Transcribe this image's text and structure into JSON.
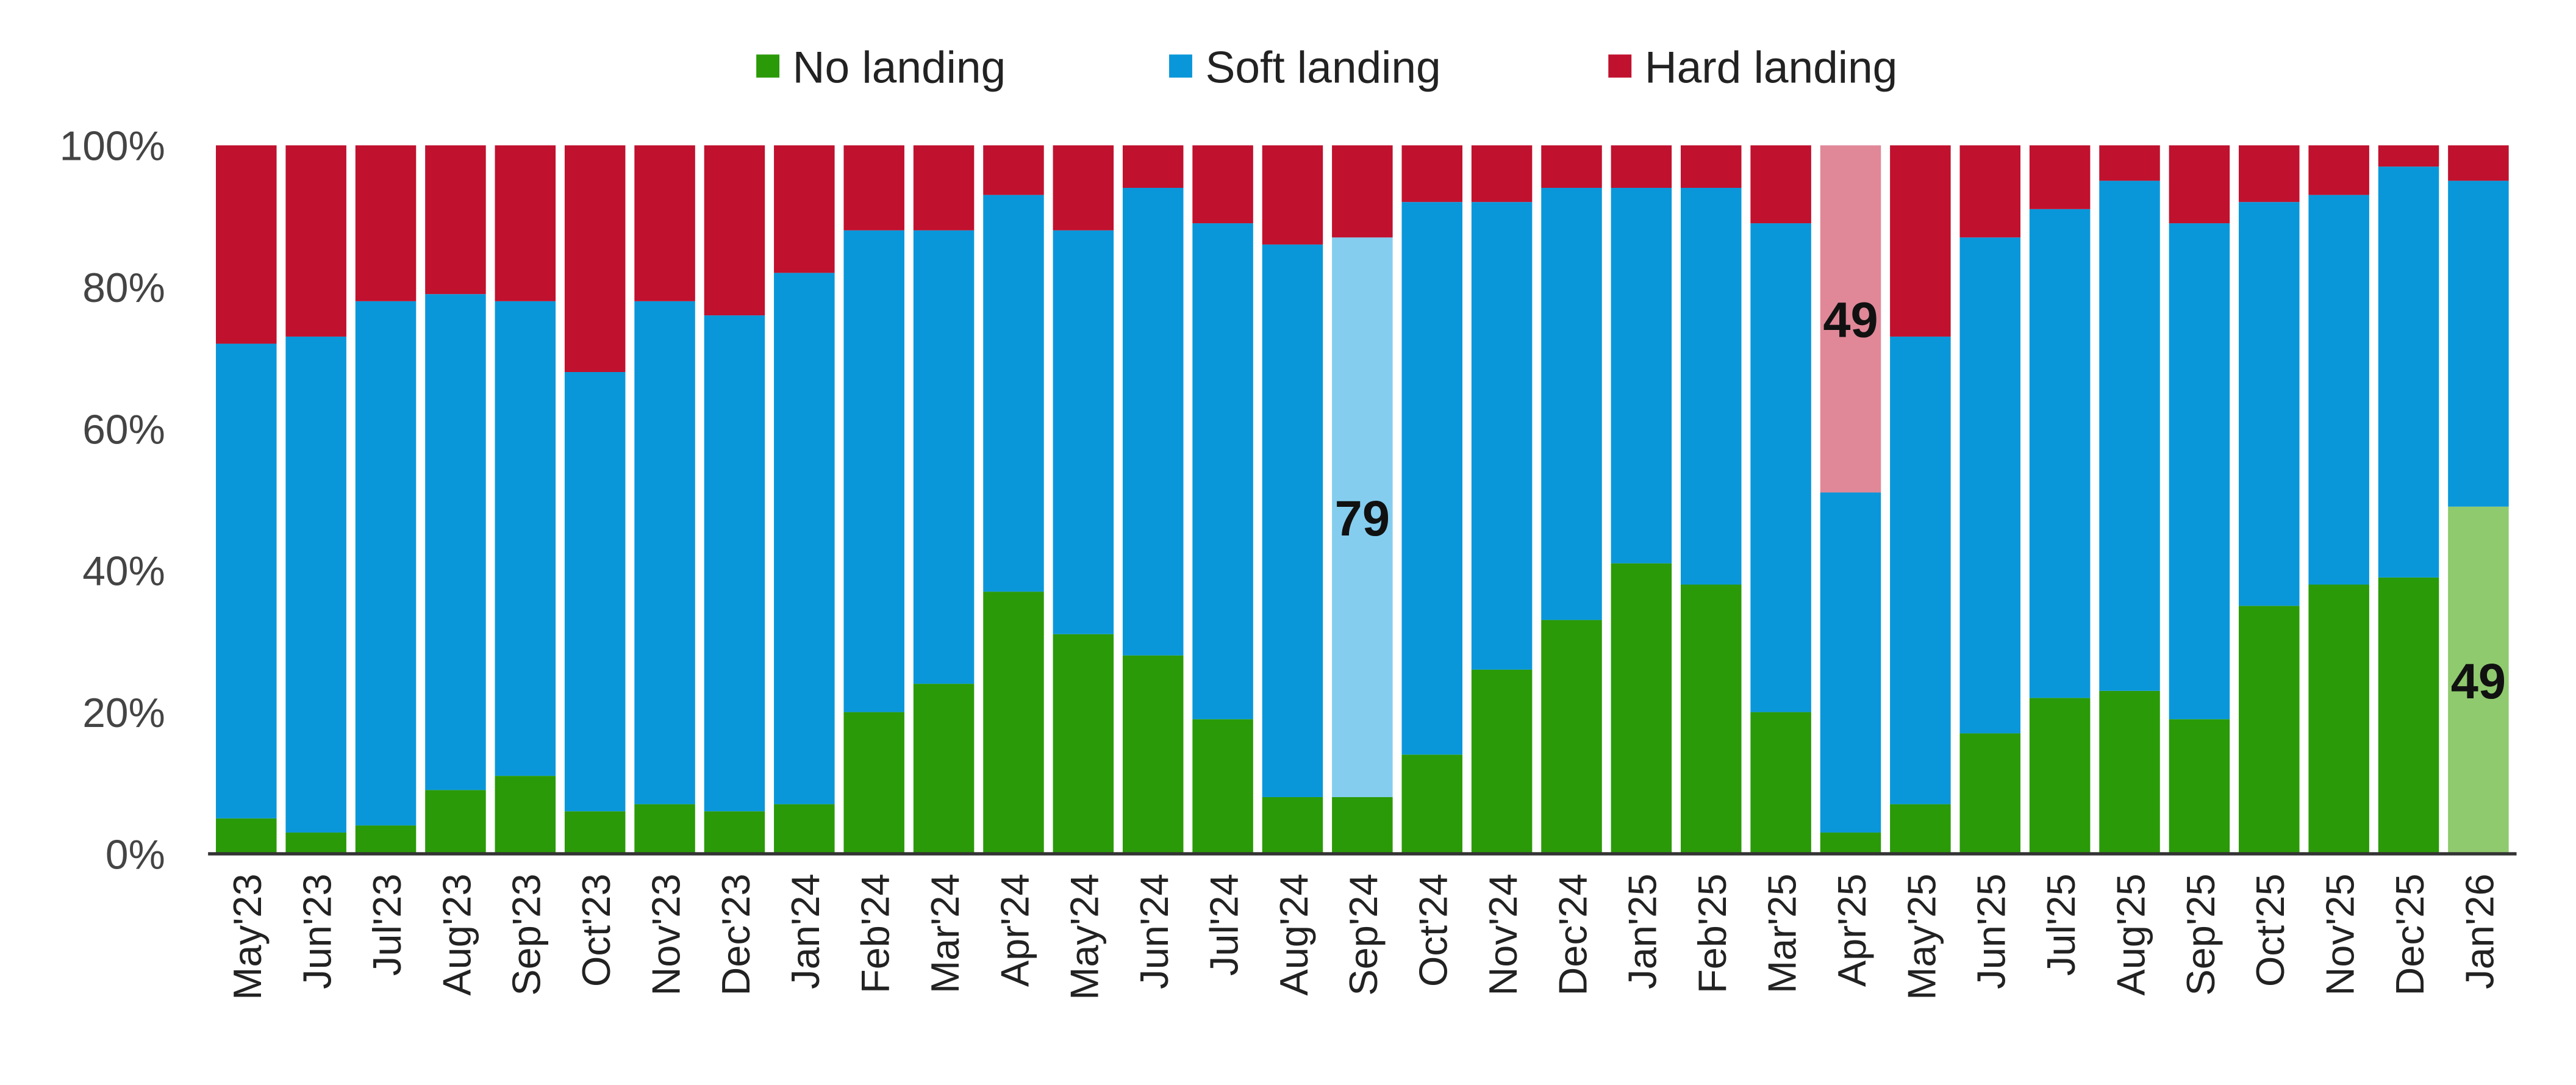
{
  "chart_data": {
    "type": "stacked-bar",
    "categories": [
      "May'23",
      "Jun'23",
      "Jul'23",
      "Aug'23",
      "Sep'23",
      "Oct'23",
      "Nov'23",
      "Dec'23",
      "Jan'24",
      "Feb'24",
      "Mar'24",
      "Apr'24",
      "May'24",
      "Jun'24",
      "Jul'24",
      "Aug'24",
      "Sep'24",
      "Oct'24",
      "Nov'24",
      "Dec'24",
      "Jan'25",
      "Feb'25",
      "Mar'25",
      "Apr'25",
      "May'25",
      "Jun'25",
      "Jul'25",
      "Aug'25",
      "Sep'25",
      "Oct'25",
      "Nov'25",
      "Dec'25",
      "Jan'26"
    ],
    "series": [
      {
        "name": "No landing",
        "color": "#2a9a08",
        "values": [
          5,
          3,
          4,
          9,
          11,
          6,
          7,
          6,
          7,
          20,
          24,
          37,
          31,
          28,
          19,
          8,
          8,
          14,
          26,
          33,
          41,
          38,
          20,
          3,
          7,
          17,
          22,
          23,
          19,
          35,
          38,
          39,
          49
        ],
        "highlight": {
          "index": 32,
          "color": "#8fca6e"
        }
      },
      {
        "name": "Soft landing",
        "color": "#0a97d9",
        "values": [
          67,
          70,
          74,
          70,
          67,
          62,
          71,
          70,
          75,
          68,
          64,
          56,
          57,
          66,
          70,
          78,
          79,
          78,
          66,
          61,
          53,
          56,
          69,
          48,
          66,
          70,
          69,
          72,
          70,
          57,
          55,
          58,
          46
        ],
        "highlight": {
          "index": 16,
          "color": "#84cdef"
        }
      },
      {
        "name": "Hard landing",
        "color": "#c0112e",
        "values": [
          28,
          27,
          22,
          21,
          22,
          32,
          22,
          24,
          18,
          12,
          12,
          7,
          12,
          6,
          11,
          14,
          13,
          8,
          8,
          6,
          6,
          6,
          11,
          49,
          27,
          13,
          9,
          5,
          11,
          8,
          7,
          3,
          5
        ],
        "highlight": {
          "index": 23,
          "color": "#e08898"
        }
      }
    ],
    "ylim": [
      0,
      100
    ],
    "yticks": [
      {
        "value": 0,
        "label": "0%"
      },
      {
        "value": 20,
        "label": "20%"
      },
      {
        "value": 40,
        "label": "40%"
      },
      {
        "value": 60,
        "label": "60%"
      },
      {
        "value": 80,
        "label": "80%"
      },
      {
        "value": 100,
        "label": "100%"
      }
    ],
    "legend": "top"
  }
}
